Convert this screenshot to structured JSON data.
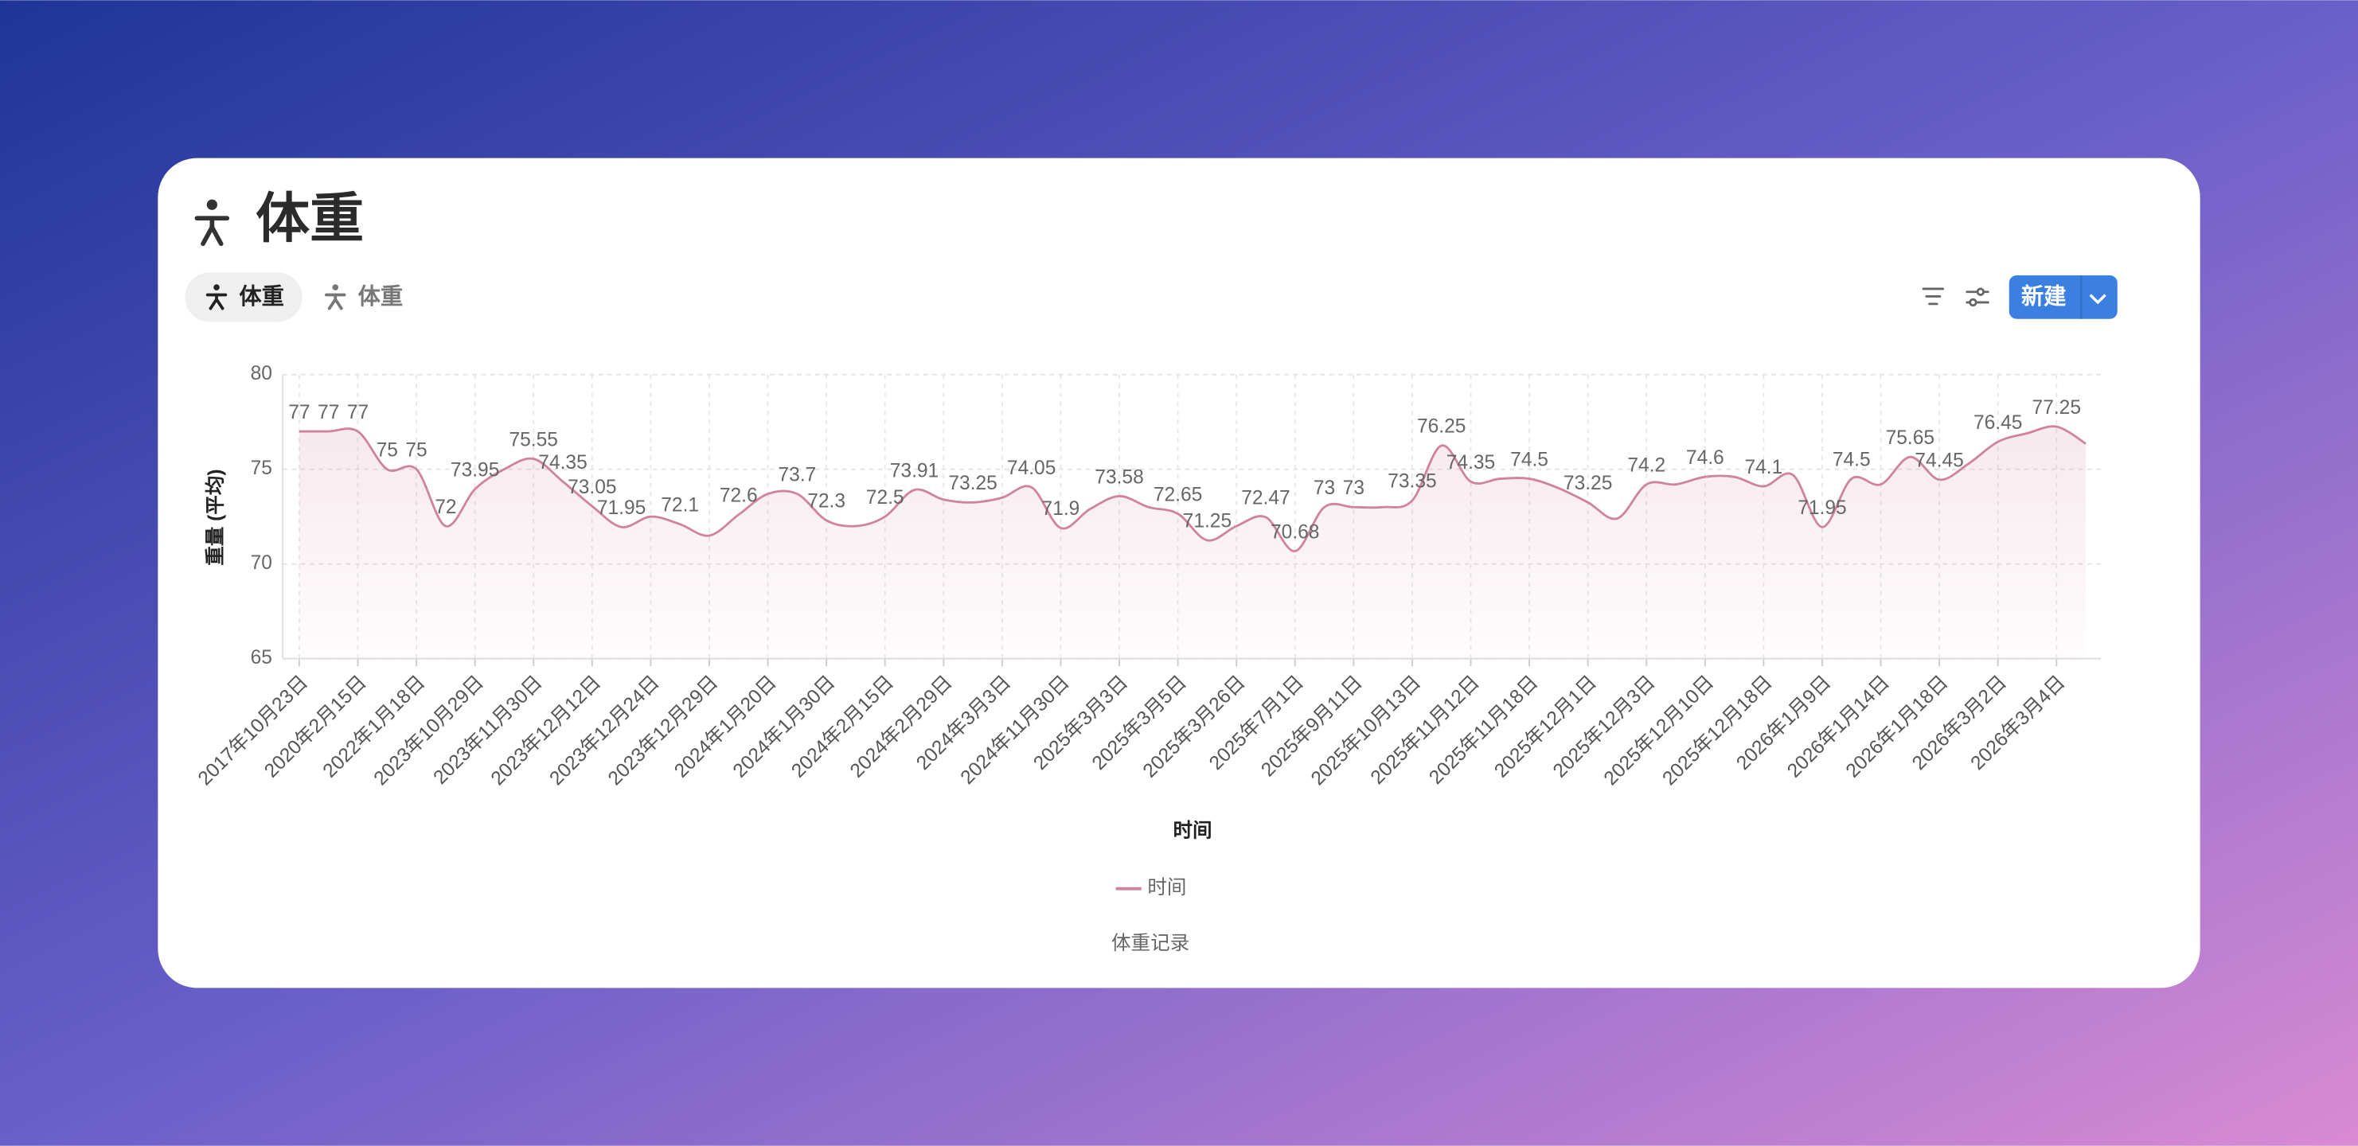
{
  "header": {
    "title": "体重",
    "tabs": [
      "体重",
      "体重"
    ],
    "new_button": "新建"
  },
  "chart_data": {
    "type": "line",
    "categories": [
      "2017年10月23日",
      null,
      "2020年2月15日",
      null,
      "2022年1月18日",
      null,
      "2023年10月29日",
      null,
      "2023年11月30日",
      null,
      "2023年12月12日",
      null,
      "2023年12月24日",
      null,
      "2023年12月29日",
      null,
      "2024年1月20日",
      null,
      "2024年1月30日",
      null,
      "2024年2月15日",
      null,
      "2024年2月29日",
      null,
      "2024年3月3日",
      null,
      "2024年11月30日",
      null,
      "2025年3月3日",
      null,
      "2025年3月5日",
      null,
      "2025年3月26日",
      null,
      "2025年7月1日",
      null,
      "2025年9月11日",
      null,
      "2025年10月13日",
      null,
      "2025年11月12日",
      null,
      "2025年11月18日",
      null,
      "2025年12月1日",
      null,
      "2025年12月3日",
      null,
      "2025年12月10日",
      null,
      "2025年12月18日",
      null,
      "2026年1月9日",
      null,
      "2026年1月14日",
      null,
      "2026年1月18日",
      null,
      "2026年3月2日",
      null,
      "2026年3月4日",
      null
    ],
    "series": [
      {
        "name": "时间",
        "color": "#d0849b",
        "values": [
          77,
          77,
          77,
          75,
          75,
          72,
          73.95,
          75.0,
          75.55,
          74.35,
          73.05,
          71.95,
          72.5,
          72.1,
          71.5,
          72.6,
          73.7,
          73.7,
          72.3,
          72.0,
          72.5,
          73.91,
          73.4,
          73.25,
          73.5,
          74.05,
          71.9,
          72.9,
          73.58,
          73.0,
          72.65,
          71.25,
          72.0,
          72.47,
          70.68,
          73,
          73,
          73.0,
          73.35,
          76.25,
          74.35,
          74.5,
          74.5,
          74.0,
          73.25,
          72.4,
          74.2,
          74.2,
          74.6,
          74.6,
          74.1,
          74.7,
          71.95,
          74.5,
          74.2,
          75.65,
          74.45,
          75.3,
          76.45,
          76.9,
          77.25,
          76.35
        ],
        "value_labels": [
          "77",
          "77",
          "77",
          "75",
          "75",
          "72",
          "73.95",
          null,
          "75.55",
          "74.35",
          "73.05",
          "71.95",
          null,
          "72.1",
          null,
          "72.6",
          null,
          "73.7",
          "72.3",
          null,
          "72.5",
          "73.91",
          null,
          "73.25",
          null,
          "74.05",
          "71.9",
          null,
          "73.58",
          null,
          "72.65",
          "71.25",
          null,
          "72.47",
          "70.68",
          "73",
          "73",
          null,
          "73.35",
          "76.25",
          "74.35",
          null,
          "74.5",
          null,
          "73.25",
          null,
          "74.2",
          null,
          "74.6",
          null,
          "74.1",
          null,
          "71.95",
          "74.5",
          null,
          "75.65",
          "74.45",
          null,
          "76.45",
          null,
          "77.25",
          null
        ]
      }
    ],
    "ylim": [
      65,
      80
    ],
    "yticks": [
      65,
      70,
      75,
      80
    ],
    "grid": true,
    "xlabel": "时间",
    "ylabel": "重量 (平均)",
    "caption": "体重记录"
  }
}
